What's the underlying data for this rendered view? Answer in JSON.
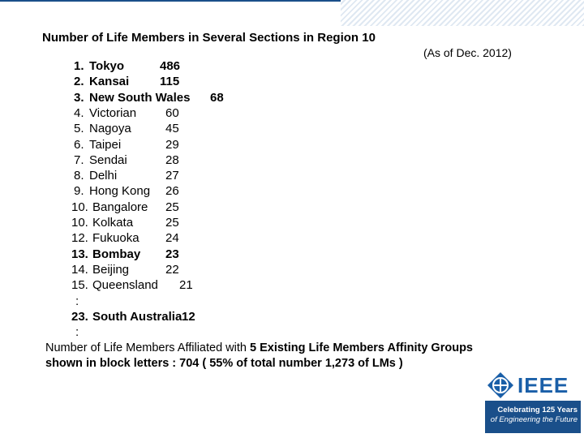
{
  "title": "Number of Life Members in Several Sections in Region 10",
  "subtitle": "(As of Dec. 2012)",
  "rows": [
    {
      "rank": "1.",
      "name": "Tokyo",
      "count": "486",
      "bold": true
    },
    {
      "rank": "2.",
      "name": "Kansai",
      "count": "115",
      "bold": true
    },
    {
      "rank": "3.",
      "name": "New South Wales",
      "count": "68",
      "bold": true
    },
    {
      "rank": "4.",
      "name": "Victorian",
      "count": "60",
      "bold": false
    },
    {
      "rank": "5.",
      "name": "Nagoya",
      "count": "45",
      "bold": false
    },
    {
      "rank": "6.",
      "name": "Taipei",
      "count": "29",
      "bold": false
    },
    {
      "rank": "7.",
      "name": "Sendai",
      "count": "28",
      "bold": false
    },
    {
      "rank": "8.",
      "name": "Delhi",
      "count": "27",
      "bold": false
    },
    {
      "rank": "9.",
      "name": "Hong Kong",
      "count": "26",
      "bold": false
    },
    {
      "rank": "10.",
      "name": "Bangalore",
      "count": "25",
      "bold": false
    },
    {
      "rank": "10.",
      "name": "Kolkata",
      "count": "25",
      "bold": false
    },
    {
      "rank": "12.",
      "name": "Fukuoka",
      "count": "24",
      "bold": false
    },
    {
      "rank": "13.",
      "name": "Bombay",
      "count": "23",
      "bold": true
    },
    {
      "rank": "14.",
      "name": "Beijing",
      "count": "22",
      "bold": false
    },
    {
      "rank": "15.",
      "name": "Queensland",
      "count": "21",
      "bold": false
    },
    {
      "rank": ":",
      "name": "",
      "count": "",
      "bold": false
    },
    {
      "rank": "23.",
      "name": "South Australia",
      "count": "12",
      "bold": true
    },
    {
      "rank": ":",
      "name": "",
      "count": "",
      "bold": false
    }
  ],
  "footer": {
    "line1_prefix": "Number of Life Members Affiliated with ",
    "line1_bold": "5 Existing Life Members Affinity Groups",
    "line2": "shown in block letters : 704 ( 55% of total number 1,273 of LMs )"
  },
  "logo": {
    "wordmark": "IEEE",
    "tagline1": "Celebrating 125 Years",
    "tagline2": "of Engineering the Future"
  }
}
